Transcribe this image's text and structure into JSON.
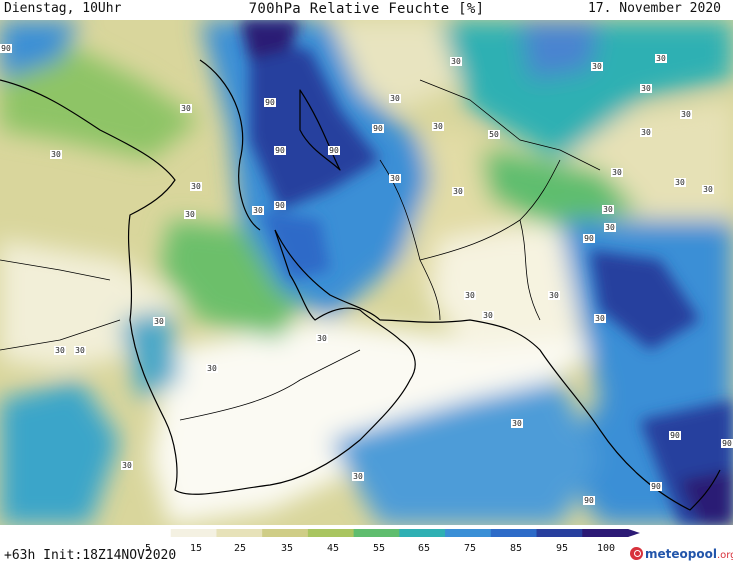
{
  "header": {
    "left": "Dienstag, 10Uhr",
    "center": "700hPa Relative Feuchte [%]",
    "right": "17. November 2020"
  },
  "footer": {
    "run": "+63h Init:18Z14NOV2020",
    "brand_main": "meteopool",
    "brand_tld": ".org"
  },
  "legend": {
    "ticks": [
      "5",
      "15",
      "25",
      "35",
      "45",
      "55",
      "65",
      "75",
      "85",
      "95",
      "100"
    ],
    "colors": [
      "#ffffff",
      "#f4f1e2",
      "#e7e2b9",
      "#cfcd86",
      "#a9c560",
      "#5fbd6e",
      "#2fb0b3",
      "#3a8fd6",
      "#2d6bc8",
      "#283f9e",
      "#2c1a75"
    ]
  },
  "contour_labels": [
    {
      "text": "90"
    },
    {
      "text": "30"
    },
    {
      "text": "30"
    },
    {
      "text": "30"
    },
    {
      "text": "30"
    },
    {
      "text": "30"
    },
    {
      "text": "90"
    },
    {
      "text": "90"
    },
    {
      "text": "90"
    },
    {
      "text": "90"
    },
    {
      "text": "30"
    },
    {
      "text": "90"
    },
    {
      "text": "30"
    },
    {
      "text": "30"
    },
    {
      "text": "50"
    },
    {
      "text": "30"
    },
    {
      "text": "30"
    },
    {
      "text": "30"
    },
    {
      "text": "30"
    },
    {
      "text": "30"
    },
    {
      "text": "30"
    },
    {
      "text": "30"
    },
    {
      "text": "30"
    },
    {
      "text": "30"
    },
    {
      "text": "30"
    },
    {
      "text": "90"
    },
    {
      "text": "30"
    },
    {
      "text": "30"
    },
    {
      "text": "30"
    },
    {
      "text": "30"
    },
    {
      "text": "30"
    },
    {
      "text": "30"
    },
    {
      "text": "30"
    },
    {
      "text": "30"
    },
    {
      "text": "30"
    },
    {
      "text": "30"
    },
    {
      "text": "90"
    },
    {
      "text": "90"
    },
    {
      "text": "90"
    },
    {
      "text": "30"
    },
    {
      "text": "30"
    },
    {
      "text": "30"
    },
    {
      "text": "30"
    },
    {
      "text": "90"
    }
  ]
}
